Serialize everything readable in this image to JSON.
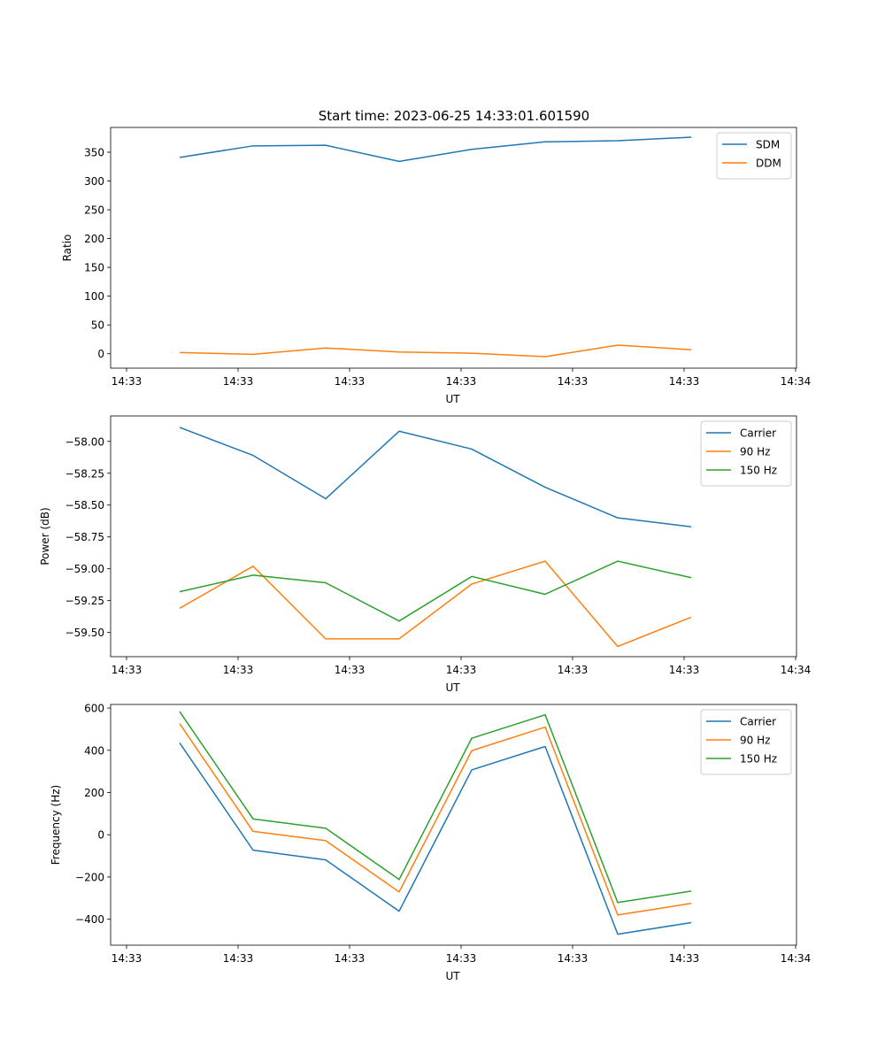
{
  "figure": {
    "title": "Start time: 2023-06-25 14:33:01.601590"
  },
  "colors": {
    "blue": "#1f77b4",
    "orange": "#ff7f0e",
    "green": "#2ca02c"
  },
  "chart_data": [
    {
      "type": "line",
      "title": "Start time: 2023-06-25 14:33:01.601590",
      "xlabel": "UT",
      "ylabel": "Ratio",
      "x_tick_labels": [
        "14:33",
        "14:33",
        "14:33",
        "14:33",
        "14:33",
        "14:33",
        "14:34"
      ],
      "y_ticks": [
        0,
        50,
        100,
        150,
        200,
        250,
        300,
        350
      ],
      "y_tick_labels": [
        "0",
        "50",
        "100",
        "150",
        "200",
        "250",
        "300",
        "350"
      ],
      "ylim": [
        -25,
        393
      ],
      "grid": false,
      "legend_position": "upper right",
      "series": [
        {
          "name": "SDM",
          "color": "#1f77b4",
          "values": [
            341,
            361,
            362,
            334,
            355,
            368,
            370,
            376
          ]
        },
        {
          "name": "DDM",
          "color": "#ff7f0e",
          "values": [
            2,
            -1,
            10,
            3,
            1,
            -5,
            15,
            7
          ]
        }
      ]
    },
    {
      "type": "line",
      "title": "",
      "xlabel": "UT",
      "ylabel": "Power (dB)",
      "x_tick_labels": [
        "14:33",
        "14:33",
        "14:33",
        "14:33",
        "14:33",
        "14:33",
        "14:34"
      ],
      "y_ticks": [
        -59.5,
        -59.25,
        -59.0,
        -58.75,
        -58.5,
        -58.25,
        -58.0
      ],
      "y_tick_labels": [
        "−59.50",
        "−59.25",
        "−59.00",
        "−58.75",
        "−58.50",
        "−58.25",
        "−58.00"
      ],
      "ylim": [
        -59.69,
        -57.8
      ],
      "grid": false,
      "legend_position": "upper right",
      "series": [
        {
          "name": "Carrier",
          "color": "#1f77b4",
          "values": [
            -57.89,
            -58.11,
            -58.45,
            -57.92,
            -58.06,
            -58.36,
            -58.6,
            -58.67
          ]
        },
        {
          "name": "90 Hz",
          "color": "#ff7f0e",
          "values": [
            -59.31,
            -58.98,
            -59.55,
            -59.55,
            -59.12,
            -58.94,
            -59.61,
            -59.38
          ]
        },
        {
          "name": "150 Hz",
          "color": "#2ca02c",
          "values": [
            -59.18,
            -59.05,
            -59.11,
            -59.41,
            -59.06,
            -59.2,
            -58.94,
            -59.07
          ]
        }
      ]
    },
    {
      "type": "line",
      "title": "",
      "xlabel": "UT",
      "ylabel": "Frequency (Hz)",
      "x_tick_labels": [
        "14:33",
        "14:33",
        "14:33",
        "14:33",
        "14:33",
        "14:33",
        "14:34"
      ],
      "y_ticks": [
        -400,
        -200,
        0,
        200,
        400,
        600
      ],
      "y_tick_labels": [
        "−400",
        "−200",
        "0",
        "200",
        "400",
        "600"
      ],
      "ylim": [
        -523,
        617
      ],
      "grid": false,
      "legend_position": "upper right",
      "series": [
        {
          "name": "Carrier",
          "color": "#1f77b4",
          "values": [
            435,
            -73,
            -119,
            -362,
            307,
            418,
            -471,
            -416
          ]
        },
        {
          "name": "90 Hz",
          "color": "#ff7f0e",
          "values": [
            526,
            16,
            -28,
            -271,
            398,
            510,
            -380,
            -325
          ]
        },
        {
          "name": "150 Hz",
          "color": "#2ca02c",
          "values": [
            583,
            75,
            31,
            -212,
            457,
            568,
            -321,
            -267
          ]
        }
      ]
    }
  ]
}
